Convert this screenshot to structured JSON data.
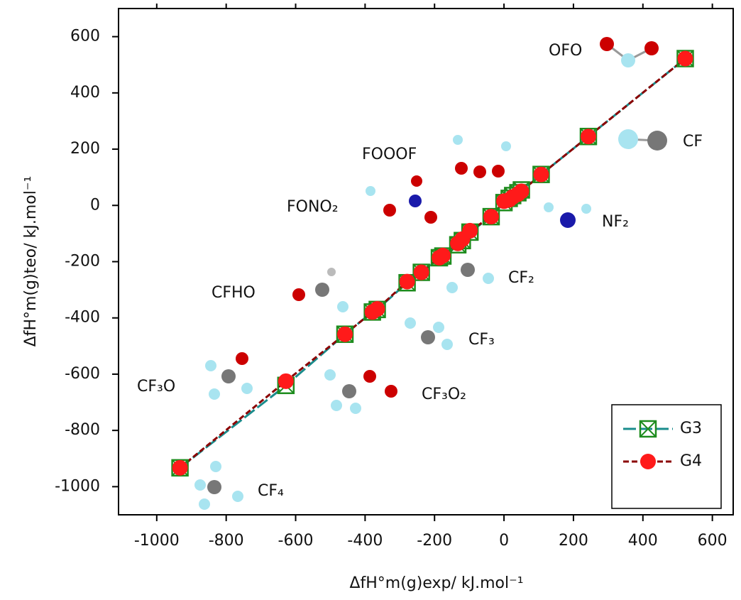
{
  "chart_data": {
    "type": "scatter",
    "x_label": "ΔfH°m(g)exp/ kJ.mol⁻¹",
    "y_label": "ΔfH°m(g)teo/ kJ.mol⁻¹",
    "x": [
      -933,
      -628,
      -458,
      -379,
      -365,
      -279,
      -238,
      -186,
      -176,
      -133,
      -120,
      -98,
      -37,
      0,
      15,
      25,
      40,
      50,
      107,
      243,
      522
    ],
    "series": [
      {
        "name": "G3",
        "color": "#1a8c8c",
        "marker_color": "#1e8c1e",
        "marker": "square-x",
        "values": [
          -933,
          -640,
          -458,
          -379,
          -370,
          -275,
          -238,
          -186,
          -180,
          -140,
          -125,
          -95,
          -40,
          10,
          25,
          35,
          45,
          55,
          110,
          245,
          522
        ]
      },
      {
        "name": "G4",
        "color": "#8b0000",
        "marker_color": "#ff1a1a",
        "marker": "circle",
        "values": [
          -933,
          -625,
          -458,
          -379,
          -368,
          -271,
          -238,
          -186,
          -178,
          -135,
          -120,
          -90,
          -40,
          15,
          20,
          30,
          40,
          50,
          110,
          245,
          522
        ]
      }
    ],
    "xlim": [
      -1110,
      660
    ],
    "ylim": [
      -1100,
      700
    ],
    "xticks": [
      -1000,
      -800,
      -600,
      -400,
      -200,
      0,
      200,
      400,
      600
    ],
    "yticks": [
      -1000,
      -800,
      -600,
      -400,
      -200,
      0,
      200,
      400,
      600
    ],
    "legend": "lower right",
    "annotations": [
      "OFO",
      "CF",
      "FOOOF",
      "FONO₂",
      "NF₂",
      "CFHO",
      "CF₂",
      "CF₃",
      "CF₃O",
      "CF₃O₂",
      "CF₄"
    ]
  }
}
